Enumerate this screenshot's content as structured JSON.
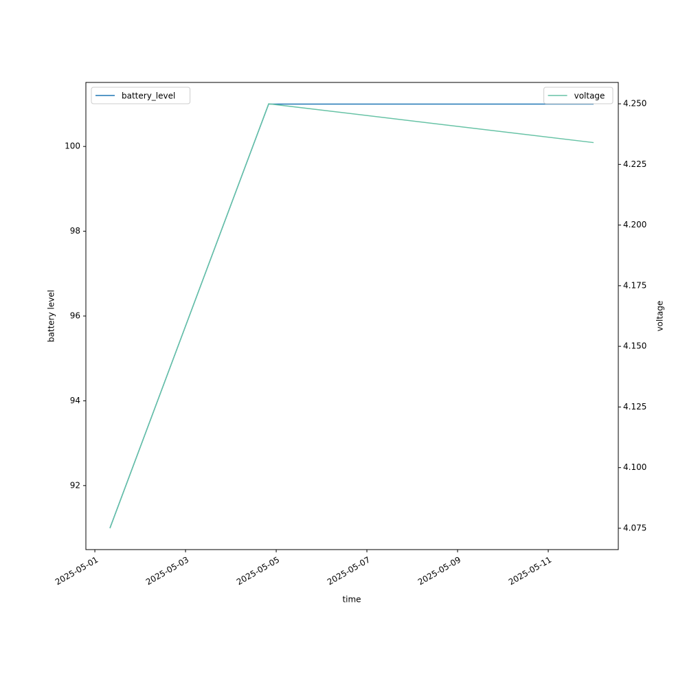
{
  "chart_data": {
    "type": "line",
    "x_label": "time",
    "y_label": "battery level",
    "y2_label": "voltage",
    "x": [
      "2025-05-01T08:00",
      "2025-05-04T20:00",
      "2025-05-12T00:00"
    ],
    "series": [
      {
        "name": "battery_level",
        "color": "#1f77b4",
        "values": [
          91,
          101,
          101
        ],
        "legend": "upper left"
      },
      {
        "name": "voltage",
        "color": "#66c2a5",
        "values": [
          4.075,
          4.25,
          4.234
        ],
        "axis": "y2",
        "legend": "upper right"
      }
    ],
    "xlim": [
      "2025-04-30T19:15",
      "2025-05-12T13:05"
    ],
    "xticks": [
      "2025-05-01",
      "2025-05-03",
      "2025-05-05",
      "2025-05-07",
      "2025-05-09",
      "2025-05-11"
    ],
    "ylim": [
      90.49,
      101.51
    ],
    "yticks": [
      92,
      94,
      96,
      98,
      100
    ],
    "y2lim": [
      4.0662,
      4.2588
    ],
    "y2ticks": [
      4.075,
      {
        "value": 4.1,
        "label": "4.100"
      },
      4.125,
      {
        "value": 4.15,
        "label": "4.150"
      },
      4.175,
      {
        "value": 4.2,
        "label": "4.200"
      },
      4.225,
      {
        "value": 4.25,
        "label": "4.250"
      }
    ]
  }
}
